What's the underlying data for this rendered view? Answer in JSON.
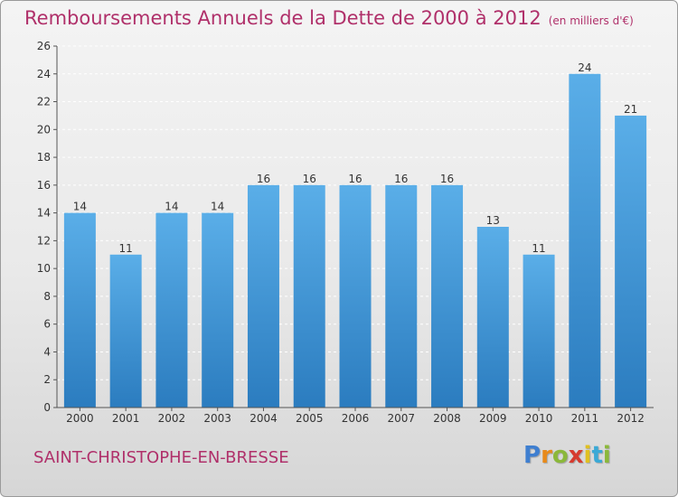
{
  "header": {
    "title": "Remboursements Annuels de la Dette de 2000 à 2012",
    "subtitle": "(en milliers d'€)"
  },
  "footer": {
    "city": "SAINT-CHRISTOPHE-EN-BRESSE",
    "logo": "Proxiti"
  },
  "colors": {
    "title": "#b0306a",
    "bar_top": "#5aaee8",
    "bar_bottom": "#2b7cbf",
    "grid": "#ffffff"
  },
  "chart_data": {
    "type": "bar",
    "title": "Remboursements Annuels de la Dette de 2000 à 2012",
    "xlabel": "",
    "ylabel": "",
    "categories": [
      "2000",
      "2001",
      "2002",
      "2003",
      "2004",
      "2005",
      "2006",
      "2007",
      "2008",
      "2009",
      "2010",
      "2011",
      "2012"
    ],
    "values": [
      14,
      11,
      14,
      14,
      16,
      16,
      16,
      16,
      16,
      13,
      11,
      24,
      21
    ],
    "data_labels": [
      "14",
      "11",
      "14",
      "14",
      "16",
      "16",
      "16",
      "16",
      "16",
      "13",
      "11",
      "24",
      "21"
    ],
    "ylim": [
      0,
      26
    ],
    "yticks": [
      0,
      2,
      4,
      6,
      8,
      10,
      12,
      14,
      16,
      18,
      20,
      22,
      24,
      26
    ],
    "grid": true,
    "legend": "none"
  }
}
